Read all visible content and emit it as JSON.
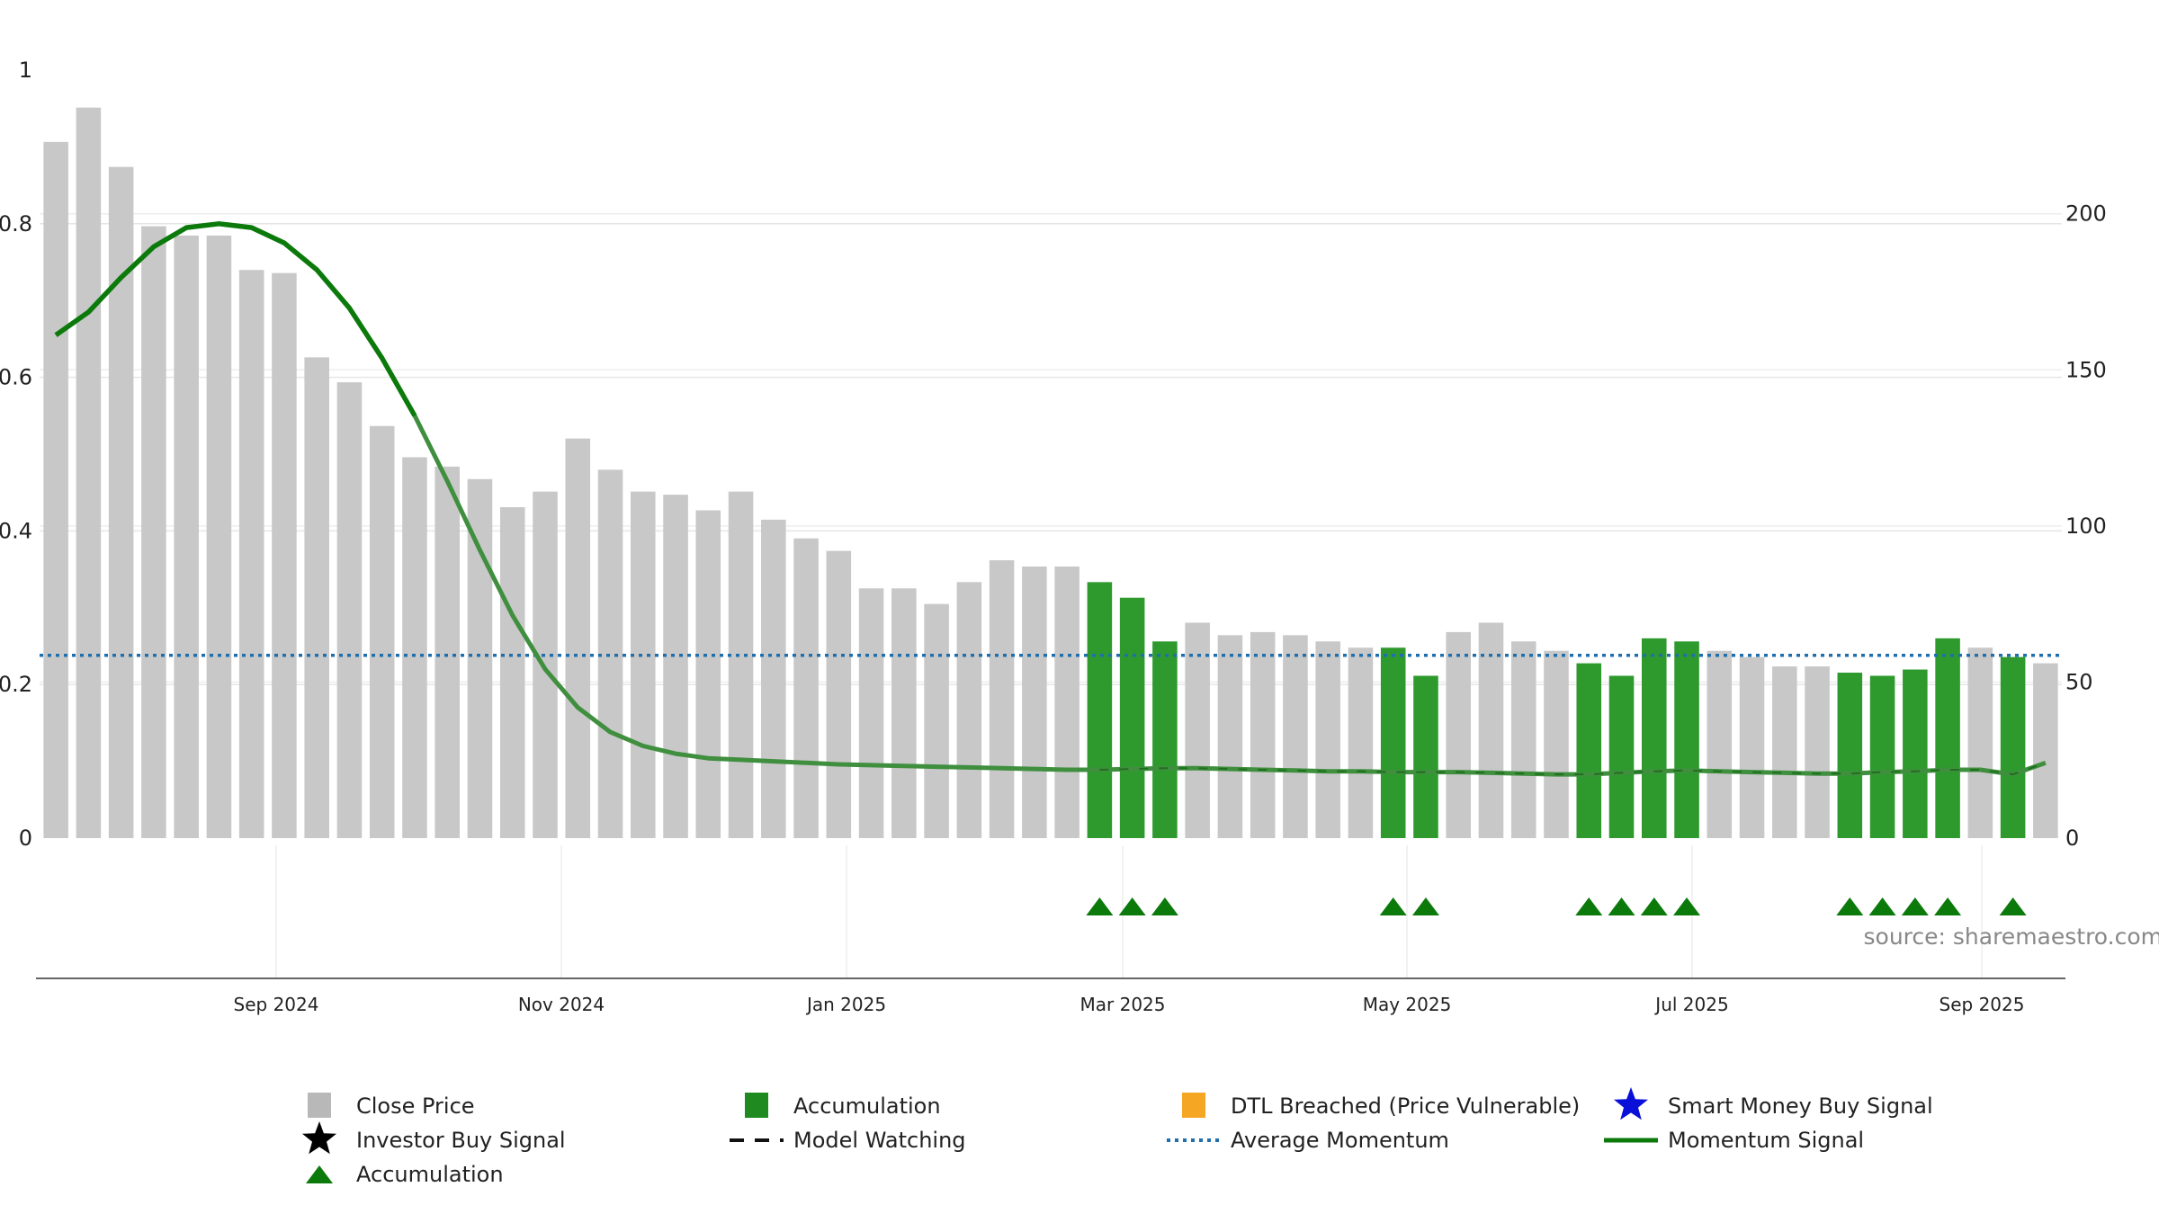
{
  "chart_data": {
    "type": "bar",
    "title": "",
    "xlabel": "",
    "ylabel": "",
    "left_axis": {
      "ylim": [
        0,
        1
      ],
      "ticks": [
        "0",
        "0.2",
        "0.4",
        "0.6",
        "0.8",
        "1"
      ]
    },
    "right_axis": {
      "ylim": [
        0,
        246
      ],
      "ticks": [
        "0",
        "50",
        "100",
        "150",
        "200"
      ]
    },
    "x_ticks": [
      "Sep 2024",
      "Nov 2024",
      "Jan 2025",
      "Mar 2025",
      "May 2025",
      "Jul 2025",
      "Sep 2025"
    ],
    "grid": true,
    "series": [
      {
        "name": "Close Price",
        "axis": "right",
        "values": [
          223,
          234,
          215,
          196,
          193,
          193,
          182,
          181,
          154,
          146,
          132,
          122,
          119,
          115,
          106,
          111,
          128,
          118,
          111,
          110,
          105,
          111,
          102,
          96,
          92,
          80,
          80,
          75,
          82,
          89,
          87,
          87,
          82,
          77,
          63,
          69,
          65,
          66,
          65,
          63,
          61,
          61,
          52,
          66,
          69,
          63,
          60,
          56,
          52,
          64,
          63,
          60,
          58,
          55,
          55,
          53,
          52,
          54,
          64,
          61,
          58,
          56
        ],
        "accumulation_flags": [
          0,
          0,
          0,
          0,
          0,
          0,
          0,
          0,
          0,
          0,
          0,
          0,
          0,
          0,
          0,
          0,
          0,
          0,
          0,
          0,
          0,
          0,
          0,
          0,
          0,
          0,
          0,
          0,
          0,
          0,
          0,
          0,
          1,
          1,
          1,
          0,
          0,
          0,
          0,
          0,
          0,
          1,
          1,
          0,
          0,
          0,
          0,
          1,
          1,
          1,
          1,
          0,
          0,
          0,
          0,
          1,
          1,
          1,
          1,
          0,
          1,
          0
        ]
      },
      {
        "name": "Momentum Signal",
        "axis": "left",
        "values": [
          0.655,
          0.685,
          0.73,
          0.77,
          0.795,
          0.8,
          0.795,
          0.775,
          0.74,
          0.69,
          0.625,
          0.55,
          0.465,
          0.375,
          0.29,
          0.22,
          0.17,
          0.138,
          0.12,
          0.11,
          0.104,
          0.102,
          0.1,
          0.098,
          0.096,
          0.095,
          0.094,
          0.093,
          0.092,
          0.091,
          0.09,
          0.089,
          0.089,
          0.09,
          0.091,
          0.091,
          0.09,
          0.089,
          0.088,
          0.087,
          0.087,
          0.086,
          0.086,
          0.086,
          0.085,
          0.084,
          0.083,
          0.083,
          0.085,
          0.087,
          0.088,
          0.087,
          0.086,
          0.085,
          0.084,
          0.084,
          0.086,
          0.087,
          0.089,
          0.089,
          0.083,
          0.098
        ],
        "highlight_range": [
          0,
          11
        ]
      },
      {
        "name": "Average Momentum",
        "axis": "left",
        "value": 0.238
      }
    ],
    "accumulation_markers": [
      32,
      33,
      34,
      41,
      42,
      47,
      48,
      49,
      50,
      55,
      56,
      57,
      58,
      60
    ],
    "source": "source: sharemaestro.com",
    "legend": {
      "placement": "bottom",
      "items": [
        {
          "label": "Close Price",
          "marker": "gray-square"
        },
        {
          "label": "Accumulation",
          "marker": "green-square"
        },
        {
          "label": "DTL Breached (Price Vulnerable)",
          "marker": "orange-square"
        },
        {
          "label": "Smart Money Buy Signal",
          "marker": "blue-star"
        },
        {
          "label": "Investor Buy Signal",
          "marker": "black-star"
        },
        {
          "label": "Model Watching",
          "marker": "black-dashed-line"
        },
        {
          "label": "Average Momentum",
          "marker": "blue-dotted-line"
        },
        {
          "label": "Momentum Signal",
          "marker": "green-line"
        },
        {
          "label": "Accumulation",
          "marker": "green-triangle"
        }
      ]
    },
    "colors": {
      "close_price": "#c8c8c8",
      "accumulation": "#2e9a2e",
      "dtl_breached": "#f5a623",
      "smart_money": "#0a10d8",
      "investor": "#000000",
      "average_momentum": "#1f6fae",
      "momentum": "#0b7a0b",
      "momentum_faded": "#3f8f3f",
      "triangle": "#0b7a0b"
    }
  }
}
